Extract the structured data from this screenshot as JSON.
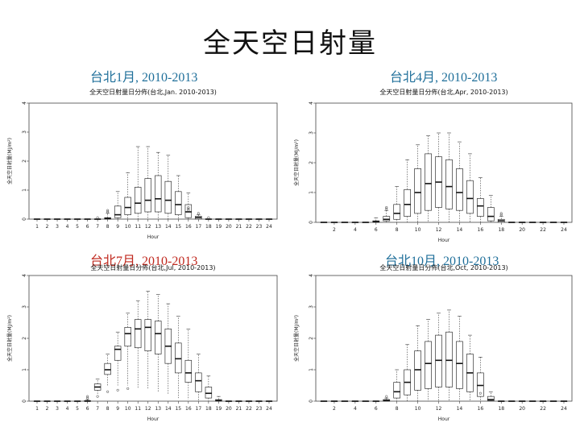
{
  "slide": {
    "title": "全天空日射量"
  },
  "section_labels": [
    {
      "text": "台北1月, 2010-2013",
      "color": "#1f6f9a"
    },
    {
      "text": "台北4月, 2010-2013",
      "color": "#1f6f9a"
    },
    {
      "text": "台北7月, 2010-2013",
      "color": "#c0281e"
    },
    {
      "text": "台北10月, 2010-2013",
      "color": "#1f6f9a"
    }
  ],
  "chart_data": [
    {
      "type": "boxplot",
      "title": "全天空日射量日分佈(台北,Jan. 2010-2013)",
      "xlabel": "Hour",
      "ylabel": "全天空日射量(MJ/m²)",
      "x_ticks": [
        "1",
        "2",
        "3",
        "4",
        "5",
        "6",
        "7",
        "8",
        "9",
        "10",
        "11",
        "12",
        "13",
        "14",
        "15",
        "16",
        "17",
        "18",
        "19",
        "20",
        "21",
        "22",
        "23",
        "24"
      ],
      "y_ticks": [
        0,
        1,
        2,
        3,
        4
      ],
      "ylim": [
        0,
        4
      ],
      "boxes": [
        {
          "hour": 1,
          "q1": 0,
          "median": 0,
          "q3": 0,
          "lo": 0,
          "hi": 0
        },
        {
          "hour": 2,
          "q1": 0,
          "median": 0,
          "q3": 0,
          "lo": 0,
          "hi": 0
        },
        {
          "hour": 3,
          "q1": 0,
          "median": 0,
          "q3": 0,
          "lo": 0,
          "hi": 0
        },
        {
          "hour": 4,
          "q1": 0,
          "median": 0,
          "q3": 0,
          "lo": 0,
          "hi": 0
        },
        {
          "hour": 5,
          "q1": 0,
          "median": 0,
          "q3": 0,
          "lo": 0,
          "hi": 0
        },
        {
          "hour": 6,
          "q1": 0,
          "median": 0,
          "q3": 0,
          "lo": 0,
          "hi": 0
        },
        {
          "hour": 7,
          "q1": 0,
          "median": 0,
          "q3": 0,
          "lo": 0,
          "hi": 0,
          "outliers": [
            0.05
          ]
        },
        {
          "hour": 8,
          "q1": 0,
          "median": 0.02,
          "q3": 0.05,
          "lo": 0,
          "hi": 0.2,
          "outliers": [
            0.25,
            0.3
          ]
        },
        {
          "hour": 9,
          "q1": 0.05,
          "median": 0.15,
          "q3": 0.45,
          "lo": 0,
          "hi": 0.95
        },
        {
          "hour": 10,
          "q1": 0.15,
          "median": 0.4,
          "q3": 0.75,
          "lo": 0,
          "hi": 1.6
        },
        {
          "hour": 11,
          "q1": 0.2,
          "median": 0.55,
          "q3": 1.1,
          "lo": 0,
          "hi": 2.5
        },
        {
          "hour": 12,
          "q1": 0.25,
          "median": 0.65,
          "q3": 1.4,
          "lo": 0,
          "hi": 2.5
        },
        {
          "hour": 13,
          "q1": 0.25,
          "median": 0.7,
          "q3": 1.5,
          "lo": 0,
          "hi": 2.3
        },
        {
          "hour": 14,
          "q1": 0.2,
          "median": 0.65,
          "q3": 1.3,
          "lo": 0,
          "hi": 2.2
        },
        {
          "hour": 15,
          "q1": 0.15,
          "median": 0.5,
          "q3": 0.95,
          "lo": 0,
          "hi": 1.5
        },
        {
          "hour": 16,
          "q1": 0.05,
          "median": 0.25,
          "q3": 0.5,
          "lo": 0,
          "hi": 0.9,
          "outliers": [
            0.3,
            0.35,
            0.4
          ]
        },
        {
          "hour": 17,
          "q1": 0,
          "median": 0.05,
          "q3": 0.1,
          "lo": 0,
          "hi": 0.15,
          "outliers": [
            0.2
          ]
        },
        {
          "hour": 18,
          "q1": 0,
          "median": 0,
          "q3": 0,
          "lo": 0,
          "hi": 0,
          "outliers": [
            0.05
          ]
        },
        {
          "hour": 19,
          "q1": 0,
          "median": 0,
          "q3": 0,
          "lo": 0,
          "hi": 0
        },
        {
          "hour": 20,
          "q1": 0,
          "median": 0,
          "q3": 0,
          "lo": 0,
          "hi": 0
        },
        {
          "hour": 21,
          "q1": 0,
          "median": 0,
          "q3": 0,
          "lo": 0,
          "hi": 0
        },
        {
          "hour": 22,
          "q1": 0,
          "median": 0,
          "q3": 0,
          "lo": 0,
          "hi": 0
        },
        {
          "hour": 23,
          "q1": 0,
          "median": 0,
          "q3": 0,
          "lo": 0,
          "hi": 0
        },
        {
          "hour": 24,
          "q1": 0,
          "median": 0,
          "q3": 0,
          "lo": 0,
          "hi": 0
        }
      ]
    },
    {
      "type": "boxplot",
      "title": "全天空日射量日分佈(台北,Apr, 2010-2013)",
      "xlabel": "Hour",
      "ylabel": "全天空日射量(MJ/m²)",
      "x_ticks": [
        "2",
        "4",
        "6",
        "8",
        "10",
        "12",
        "14",
        "16",
        "18",
        "20",
        "22",
        "24"
      ],
      "y_ticks": [
        0,
        1,
        2,
        3,
        4
      ],
      "ylim": [
        0,
        4
      ],
      "boxes": [
        {
          "hour": 1,
          "q1": 0,
          "median": 0,
          "q3": 0,
          "lo": 0,
          "hi": 0
        },
        {
          "hour": 2,
          "q1": 0,
          "median": 0,
          "q3": 0,
          "lo": 0,
          "hi": 0
        },
        {
          "hour": 3,
          "q1": 0,
          "median": 0,
          "q3": 0,
          "lo": 0,
          "hi": 0
        },
        {
          "hour": 4,
          "q1": 0,
          "median": 0,
          "q3": 0,
          "lo": 0,
          "hi": 0
        },
        {
          "hour": 5,
          "q1": 0,
          "median": 0,
          "q3": 0,
          "lo": 0,
          "hi": 0
        },
        {
          "hour": 6,
          "q1": 0,
          "median": 0.02,
          "q3": 0.05,
          "lo": 0,
          "hi": 0.15
        },
        {
          "hour": 7,
          "q1": 0.05,
          "median": 0.1,
          "q3": 0.2,
          "lo": 0,
          "hi": 0.4,
          "outliers": [
            0.45,
            0.5
          ]
        },
        {
          "hour": 8,
          "q1": 0.1,
          "median": 0.3,
          "q3": 0.6,
          "lo": 0,
          "hi": 1.2
        },
        {
          "hour": 9,
          "q1": 0.2,
          "median": 0.6,
          "q3": 1.1,
          "lo": 0,
          "hi": 2.1
        },
        {
          "hour": 10,
          "q1": 0.3,
          "median": 1.0,
          "q3": 1.8,
          "lo": 0,
          "hi": 2.6
        },
        {
          "hour": 11,
          "q1": 0.4,
          "median": 1.3,
          "q3": 2.3,
          "lo": 0,
          "hi": 2.9
        },
        {
          "hour": 12,
          "q1": 0.5,
          "median": 1.35,
          "q3": 2.2,
          "lo": 0,
          "hi": 3.0
        },
        {
          "hour": 13,
          "q1": 0.45,
          "median": 1.2,
          "q3": 2.1,
          "lo": 0,
          "hi": 3.0
        },
        {
          "hour": 14,
          "q1": 0.4,
          "median": 1.0,
          "q3": 1.8,
          "lo": 0,
          "hi": 2.7
        },
        {
          "hour": 15,
          "q1": 0.3,
          "median": 0.8,
          "q3": 1.4,
          "lo": 0,
          "hi": 2.3
        },
        {
          "hour": 16,
          "q1": 0.2,
          "median": 0.55,
          "q3": 0.8,
          "lo": 0,
          "hi": 1.5
        },
        {
          "hour": 17,
          "q1": 0.05,
          "median": 0.2,
          "q3": 0.5,
          "lo": 0,
          "hi": 0.9
        },
        {
          "hour": 18,
          "q1": 0,
          "median": 0.05,
          "q3": 0.1,
          "lo": 0,
          "hi": 0.2,
          "outliers": [
            0.25,
            0.3
          ]
        },
        {
          "hour": 19,
          "q1": 0,
          "median": 0,
          "q3": 0,
          "lo": 0,
          "hi": 0
        },
        {
          "hour": 20,
          "q1": 0,
          "median": 0,
          "q3": 0,
          "lo": 0,
          "hi": 0
        },
        {
          "hour": 21,
          "q1": 0,
          "median": 0,
          "q3": 0,
          "lo": 0,
          "hi": 0
        },
        {
          "hour": 22,
          "q1": 0,
          "median": 0,
          "q3": 0,
          "lo": 0,
          "hi": 0
        },
        {
          "hour": 23,
          "q1": 0,
          "median": 0,
          "q3": 0,
          "lo": 0,
          "hi": 0
        },
        {
          "hour": 24,
          "q1": 0,
          "median": 0,
          "q3": 0,
          "lo": 0,
          "hi": 0
        }
      ]
    },
    {
      "type": "boxplot",
      "title": "全天空日射量日分佈(台北,Jul, 2010-2013)",
      "xlabel": "Hour",
      "ylabel": "全天空日射量(MJ/m²)",
      "x_ticks": [
        "1",
        "2",
        "3",
        "4",
        "5",
        "6",
        "7",
        "8",
        "9",
        "10",
        "11",
        "12",
        "13",
        "14",
        "15",
        "16",
        "17",
        "18",
        "19",
        "20",
        "21",
        "22",
        "23",
        "24"
      ],
      "y_ticks": [
        0,
        1,
        2,
        3,
        4
      ],
      "ylim": [
        0,
        4
      ],
      "boxes": [
        {
          "hour": 1,
          "q1": 0,
          "median": 0,
          "q3": 0,
          "lo": 0,
          "hi": 0
        },
        {
          "hour": 2,
          "q1": 0,
          "median": 0,
          "q3": 0,
          "lo": 0,
          "hi": 0
        },
        {
          "hour": 3,
          "q1": 0,
          "median": 0,
          "q3": 0,
          "lo": 0,
          "hi": 0
        },
        {
          "hour": 4,
          "q1": 0,
          "median": 0,
          "q3": 0,
          "lo": 0,
          "hi": 0
        },
        {
          "hour": 5,
          "q1": 0,
          "median": 0,
          "q3": 0,
          "lo": 0,
          "hi": 0
        },
        {
          "hour": 6,
          "q1": 0,
          "median": 0,
          "q3": 0.02,
          "lo": 0,
          "hi": 0.05,
          "outliers": [
            0.1,
            0.15
          ]
        },
        {
          "hour": 7,
          "q1": 0.35,
          "median": 0.45,
          "q3": 0.55,
          "lo": 0.2,
          "hi": 0.7,
          "outliers": [
            0.15
          ]
        },
        {
          "hour": 8,
          "q1": 0.85,
          "median": 1.0,
          "q3": 1.2,
          "lo": 0.5,
          "hi": 1.5,
          "outliers": [
            0.3
          ]
        },
        {
          "hour": 9,
          "q1": 1.3,
          "median": 1.65,
          "q3": 1.75,
          "lo": 0.5,
          "hi": 2.2,
          "outliers": [
            0.35
          ]
        },
        {
          "hour": 10,
          "q1": 1.75,
          "median": 2.15,
          "q3": 2.35,
          "lo": 0.5,
          "hi": 2.8,
          "outliers": [
            0.4
          ]
        },
        {
          "hour": 11,
          "q1": 1.7,
          "median": 2.3,
          "q3": 2.6,
          "lo": 0.4,
          "hi": 3.2
        },
        {
          "hour": 12,
          "q1": 1.6,
          "median": 2.35,
          "q3": 2.6,
          "lo": 0.4,
          "hi": 3.5
        },
        {
          "hour": 13,
          "q1": 1.5,
          "median": 2.15,
          "q3": 2.55,
          "lo": 0.3,
          "hi": 3.4
        },
        {
          "hour": 14,
          "q1": 1.2,
          "median": 1.75,
          "q3": 2.3,
          "lo": 0.2,
          "hi": 3.1
        },
        {
          "hour": 15,
          "q1": 0.9,
          "median": 1.35,
          "q3": 1.85,
          "lo": 0.1,
          "hi": 2.7
        },
        {
          "hour": 16,
          "q1": 0.6,
          "median": 0.9,
          "q3": 1.3,
          "lo": 0.05,
          "hi": 2.3
        },
        {
          "hour": 17,
          "q1": 0.3,
          "median": 0.65,
          "q3": 0.9,
          "lo": 0,
          "hi": 1.5
        },
        {
          "hour": 18,
          "q1": 0.1,
          "median": 0.25,
          "q3": 0.45,
          "lo": 0,
          "hi": 0.8
        },
        {
          "hour": 19,
          "q1": 0,
          "median": 0.02,
          "q3": 0.05,
          "lo": 0,
          "hi": 0.15
        },
        {
          "hour": 20,
          "q1": 0,
          "median": 0,
          "q3": 0,
          "lo": 0,
          "hi": 0
        },
        {
          "hour": 21,
          "q1": 0,
          "median": 0,
          "q3": 0,
          "lo": 0,
          "hi": 0
        },
        {
          "hour": 22,
          "q1": 0,
          "median": 0,
          "q3": 0,
          "lo": 0,
          "hi": 0
        },
        {
          "hour": 23,
          "q1": 0,
          "median": 0,
          "q3": 0,
          "lo": 0,
          "hi": 0
        },
        {
          "hour": 24,
          "q1": 0,
          "median": 0,
          "q3": 0,
          "lo": 0,
          "hi": 0
        }
      ]
    },
    {
      "type": "boxplot",
      "title": "全天空日射量日分佈(台北,Oct, 2010-2013)",
      "xlabel": "Hour",
      "ylabel": "全天空日射量(MJ/m²)",
      "x_ticks": [
        "2",
        "4",
        "6",
        "8",
        "10",
        "12",
        "14",
        "16",
        "18",
        "20",
        "22",
        "24"
      ],
      "y_ticks": [
        0,
        1,
        2,
        3,
        4
      ],
      "ylim": [
        0,
        4
      ],
      "boxes": [
        {
          "hour": 1,
          "q1": 0,
          "median": 0,
          "q3": 0,
          "lo": 0,
          "hi": 0
        },
        {
          "hour": 2,
          "q1": 0,
          "median": 0,
          "q3": 0,
          "lo": 0,
          "hi": 0
        },
        {
          "hour": 3,
          "q1": 0,
          "median": 0,
          "q3": 0,
          "lo": 0,
          "hi": 0
        },
        {
          "hour": 4,
          "q1": 0,
          "median": 0,
          "q3": 0,
          "lo": 0,
          "hi": 0
        },
        {
          "hour": 5,
          "q1": 0,
          "median": 0,
          "q3": 0,
          "lo": 0,
          "hi": 0
        },
        {
          "hour": 6,
          "q1": 0,
          "median": 0,
          "q3": 0,
          "lo": 0,
          "hi": 0
        },
        {
          "hour": 7,
          "q1": 0,
          "median": 0.02,
          "q3": 0.05,
          "lo": 0,
          "hi": 0.1,
          "outliers": [
            0.15
          ]
        },
        {
          "hour": 8,
          "q1": 0.1,
          "median": 0.3,
          "q3": 0.6,
          "lo": 0,
          "hi": 1.0
        },
        {
          "hour": 9,
          "q1": 0.2,
          "median": 0.6,
          "q3": 1.0,
          "lo": 0,
          "hi": 1.8
        },
        {
          "hour": 10,
          "q1": 0.35,
          "median": 1.0,
          "q3": 1.6,
          "lo": 0,
          "hi": 2.4
        },
        {
          "hour": 11,
          "q1": 0.4,
          "median": 1.2,
          "q3": 1.9,
          "lo": 0,
          "hi": 2.6
        },
        {
          "hour": 12,
          "q1": 0.45,
          "median": 1.3,
          "q3": 2.1,
          "lo": 0,
          "hi": 2.8
        },
        {
          "hour": 13,
          "q1": 0.45,
          "median": 1.3,
          "q3": 2.2,
          "lo": 0,
          "hi": 2.9
        },
        {
          "hour": 14,
          "q1": 0.4,
          "median": 1.2,
          "q3": 1.9,
          "lo": 0,
          "hi": 2.7
        },
        {
          "hour": 15,
          "q1": 0.3,
          "median": 0.9,
          "q3": 1.5,
          "lo": 0,
          "hi": 2.1
        },
        {
          "hour": 16,
          "q1": 0.15,
          "median": 0.5,
          "q3": 0.9,
          "lo": 0,
          "hi": 1.4,
          "outliers": [
            0.25
          ]
        },
        {
          "hour": 17,
          "q1": 0.02,
          "median": 0.05,
          "q3": 0.15,
          "lo": 0,
          "hi": 0.3
        },
        {
          "hour": 18,
          "q1": 0,
          "median": 0,
          "q3": 0,
          "lo": 0,
          "hi": 0
        },
        {
          "hour": 19,
          "q1": 0,
          "median": 0,
          "q3": 0,
          "lo": 0,
          "hi": 0
        },
        {
          "hour": 20,
          "q1": 0,
          "median": 0,
          "q3": 0,
          "lo": 0,
          "hi": 0
        },
        {
          "hour": 21,
          "q1": 0,
          "median": 0,
          "q3": 0,
          "lo": 0,
          "hi": 0
        },
        {
          "hour": 22,
          "q1": 0,
          "median": 0,
          "q3": 0,
          "lo": 0,
          "hi": 0
        },
        {
          "hour": 23,
          "q1": 0,
          "median": 0,
          "q3": 0,
          "lo": 0,
          "hi": 0
        },
        {
          "hour": 24,
          "q1": 0,
          "median": 0,
          "q3": 0,
          "lo": 0,
          "hi": 0
        }
      ]
    }
  ]
}
